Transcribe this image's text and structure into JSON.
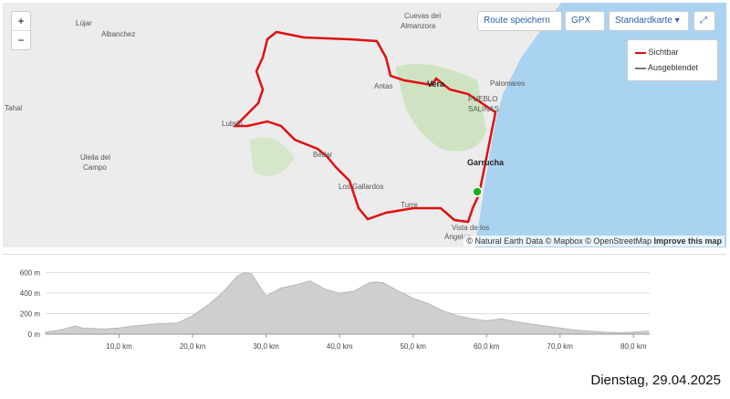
{
  "map": {
    "zoom_in": "+",
    "zoom_out": "−",
    "buttons": {
      "save_route": "Route speichern",
      "gpx": "GPX",
      "map_style": "Standardkarte"
    },
    "legend": {
      "visible": "Sichtbar",
      "hidden": "Ausgeblendet"
    },
    "places": [
      "Lújar",
      "Albanchez",
      "Cuevas del",
      "Almanzora",
      "Antas",
      "Vera",
      "Palomares",
      "PUEBLO",
      "SALINAS",
      "Tahal",
      "Lubrín",
      "Uleila del",
      "Campo",
      "Bédar",
      "Garrucha",
      "Los Gallardos",
      "Turre",
      "Vista de los",
      "Ángeles"
    ],
    "attribution": {
      "natural_earth": "© Natural Earth Data",
      "mapbox": "© Mapbox",
      "osm": "© OpenStreetMap",
      "improve": "Improve this map"
    }
  },
  "chart_data": {
    "type": "area",
    "color": "#cfcfcf",
    "grid": true,
    "x": [
      0,
      2,
      4,
      5,
      8,
      10,
      12,
      15,
      18,
      20,
      22,
      24,
      26,
      27,
      28,
      30,
      32,
      34,
      36,
      38,
      40,
      42,
      44,
      45,
      46,
      48,
      50,
      52,
      54,
      56,
      58,
      60,
      62,
      64,
      66,
      68,
      70,
      72,
      74,
      76,
      78,
      80,
      82
    ],
    "values": [
      20,
      40,
      80,
      60,
      50,
      60,
      80,
      100,
      110,
      180,
      280,
      400,
      560,
      600,
      590,
      370,
      450,
      480,
      520,
      440,
      400,
      420,
      500,
      510,
      500,
      420,
      350,
      300,
      230,
      180,
      150,
      130,
      150,
      120,
      100,
      80,
      60,
      40,
      30,
      20,
      15,
      20,
      30
    ],
    "xlim": [
      0,
      82.2
    ],
    "ylim": [
      0,
      650
    ],
    "xticks": [
      {
        "value": 10,
        "label": "10,0 km"
      },
      {
        "value": 20,
        "label": "20,0 km"
      },
      {
        "value": 30,
        "label": "30,0 km"
      },
      {
        "value": 40,
        "label": "40,0 km"
      },
      {
        "value": 50,
        "label": "50,0 km"
      },
      {
        "value": 60,
        "label": "60,0 km"
      },
      {
        "value": 70,
        "label": "70,0 km"
      },
      {
        "value": 80,
        "label": "80,0 km"
      }
    ],
    "yticks": [
      {
        "value": 0,
        "label": "0 m"
      },
      {
        "value": 200,
        "label": "200 m"
      },
      {
        "value": 400,
        "label": "400 m"
      },
      {
        "value": 600,
        "label": "600 m"
      }
    ]
  },
  "footer": {
    "date": "Dienstag, 29.04.2025"
  }
}
